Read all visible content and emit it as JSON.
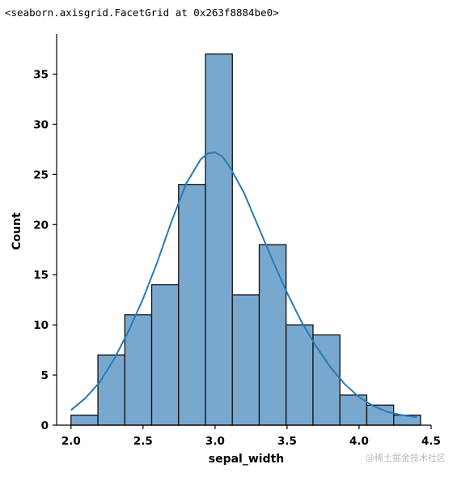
{
  "output": {
    "repr_text": "<seaborn.axisgrid.FacetGrid at 0x263f8884be0>"
  },
  "watermark": "@稀土掘金技术社区",
  "chart_data": {
    "type": "bar",
    "subtype": "histogram_with_kde",
    "xlabel": "sepal_width",
    "ylabel": "Count",
    "xlim": [
      1.9,
      4.5
    ],
    "ylim": [
      0,
      39
    ],
    "xticks": [
      2.0,
      2.5,
      3.0,
      3.5,
      4.0,
      4.5
    ],
    "xtick_labels": [
      "2.0",
      "2.5",
      "3.0",
      "3.5",
      "4.0",
      "4.5"
    ],
    "yticks": [
      0,
      5,
      10,
      15,
      20,
      25,
      30,
      35
    ],
    "ytick_labels": [
      "0",
      "5",
      "10",
      "15",
      "20",
      "25",
      "30",
      "35"
    ],
    "bins": [
      {
        "start": 2.0,
        "end": 2.1867,
        "count": 1
      },
      {
        "start": 2.1867,
        "end": 2.3733,
        "count": 7
      },
      {
        "start": 2.3733,
        "end": 2.56,
        "count": 11
      },
      {
        "start": 2.56,
        "end": 2.7467,
        "count": 14
      },
      {
        "start": 2.7467,
        "end": 2.9333,
        "count": 24
      },
      {
        "start": 2.9333,
        "end": 3.12,
        "count": 37
      },
      {
        "start": 3.12,
        "end": 3.3067,
        "count": 13
      },
      {
        "start": 3.3067,
        "end": 3.4933,
        "count": 18
      },
      {
        "start": 3.4933,
        "end": 3.68,
        "count": 10
      },
      {
        "start": 3.68,
        "end": 3.8667,
        "count": 9
      },
      {
        "start": 3.8667,
        "end": 4.0533,
        "count": 3
      },
      {
        "start": 4.0533,
        "end": 4.24,
        "count": 2
      },
      {
        "start": 4.24,
        "end": 4.4267,
        "count": 1
      }
    ],
    "kde": {
      "x": [
        2.0,
        2.1,
        2.2,
        2.3,
        2.4,
        2.5,
        2.6,
        2.7,
        2.8,
        2.9,
        2.95,
        3.0,
        3.05,
        3.1,
        3.2,
        3.3,
        3.4,
        3.5,
        3.6,
        3.7,
        3.8,
        3.9,
        4.0,
        4.1,
        4.2,
        4.3,
        4.4
      ],
      "y": [
        1.5,
        2.7,
        4.3,
        6.6,
        9.4,
        12.6,
        16.3,
        20.4,
        24.1,
        26.5,
        27.1,
        27.2,
        26.8,
        25.8,
        23.2,
        19.8,
        16.4,
        13.2,
        10.3,
        7.9,
        5.8,
        4.1,
        2.8,
        1.9,
        1.3,
        1.0,
        0.8
      ]
    },
    "colors": {
      "bar_fill": "#79a8cf",
      "bar_edge": "#111111",
      "kde_line": "#2a7ab5",
      "axis": "#000000"
    },
    "grid": false,
    "spines": [
      "left",
      "bottom"
    ]
  }
}
